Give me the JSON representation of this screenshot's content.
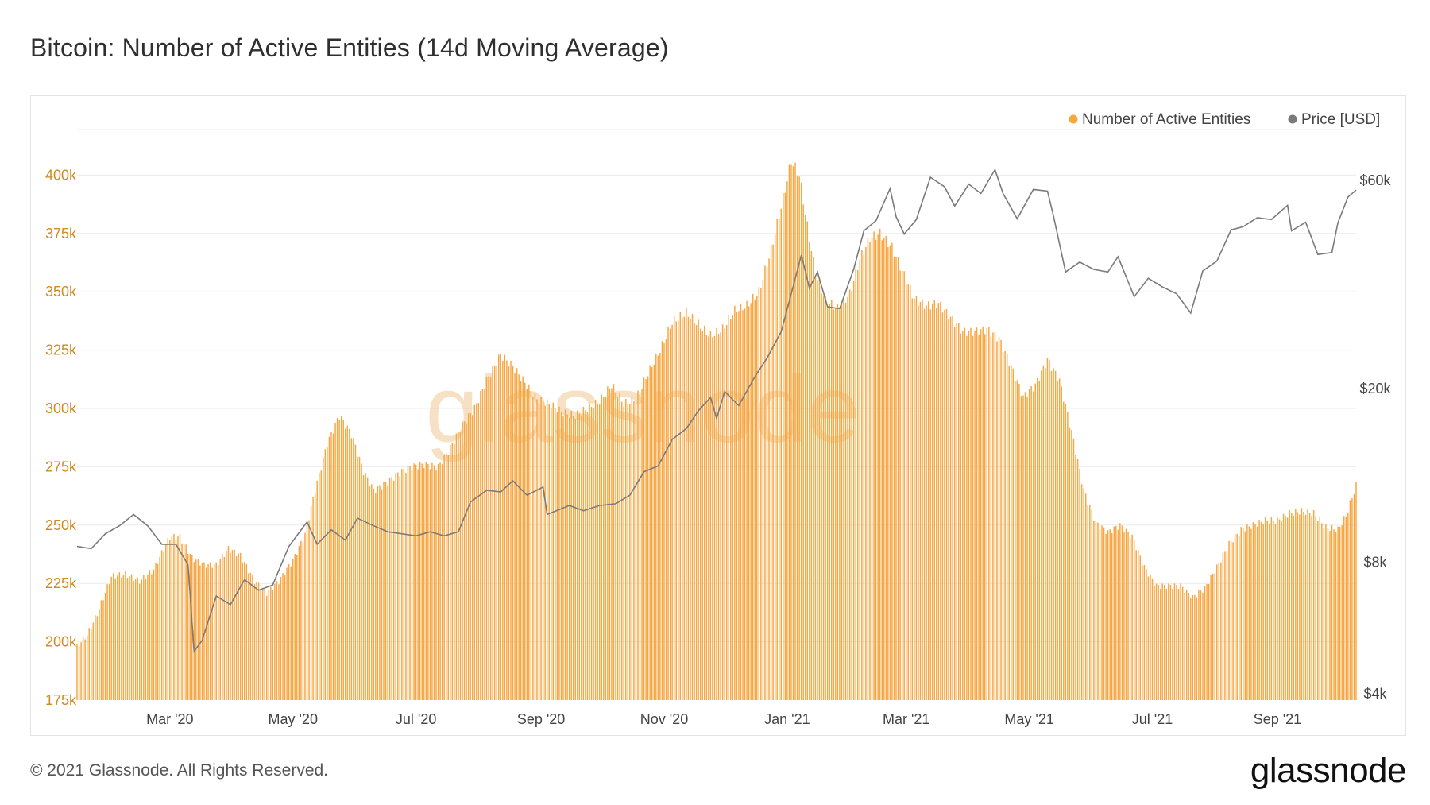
{
  "title": "Bitcoin: Number of Active Entities (14d Moving Average)",
  "footer": {
    "copyright": "© 2021 Glassnode. All Rights Reserved.",
    "logo": "glassnode"
  },
  "watermark": "glassnode",
  "colors": {
    "entities": "#f7a640",
    "price": "#7a7a7a",
    "grid": "#ececec",
    "left_axis_text": "#d08a1e"
  },
  "chart_data": {
    "type": "bar",
    "title": "Bitcoin: Number of Active Entities (14d Moving Average)",
    "x_range": [
      "2020-01-15",
      "2021-10-10"
    ],
    "x_ticks": [
      "Mar '20",
      "May '20",
      "Jul '20",
      "Sep '20",
      "Nov '20",
      "Jan '21",
      "Mar '21",
      "May '21",
      "Jul '21",
      "Sep '21"
    ],
    "x_tick_dates": [
      "2020-03-01",
      "2020-05-01",
      "2020-07-01",
      "2020-09-01",
      "2020-11-01",
      "2021-01-01",
      "2021-03-01",
      "2021-05-01",
      "2021-07-01",
      "2021-09-01"
    ],
    "y_left": {
      "ticks": [
        "175k",
        "200k",
        "225k",
        "250k",
        "275k",
        "300k",
        "325k",
        "350k",
        "375k",
        "400k"
      ],
      "range": [
        175000,
        410000
      ]
    },
    "y_right": {
      "ticks": [
        "$4k",
        "$8k",
        "$20k",
        "$60k"
      ],
      "tick_values": [
        4000,
        8000,
        20000,
        60000
      ],
      "scale": "log"
    },
    "legend": {
      "position": "top-right",
      "items": [
        "Number of Active Entities",
        "Price [USD]"
      ]
    },
    "grid": true,
    "series": [
      {
        "name": "Number of Active Entities",
        "kind": "bar",
        "axis": "left",
        "points": [
          [
            "2020-01-15",
            198000
          ],
          [
            "2020-01-20",
            203000
          ],
          [
            "2020-01-25",
            212000
          ],
          [
            "2020-02-01",
            228000
          ],
          [
            "2020-02-08",
            229000
          ],
          [
            "2020-02-15",
            226000
          ],
          [
            "2020-02-22",
            231000
          ],
          [
            "2020-03-01",
            245000
          ],
          [
            "2020-03-06",
            245000
          ],
          [
            "2020-03-12",
            236000
          ],
          [
            "2020-03-18",
            233000
          ],
          [
            "2020-03-24",
            233000
          ],
          [
            "2020-03-30",
            240000
          ],
          [
            "2020-04-05",
            237000
          ],
          [
            "2020-04-12",
            226000
          ],
          [
            "2020-04-18",
            221000
          ],
          [
            "2020-04-24",
            226000
          ],
          [
            "2020-05-01",
            235000
          ],
          [
            "2020-05-07",
            246000
          ],
          [
            "2020-05-12",
            265000
          ],
          [
            "2020-05-18",
            285000
          ],
          [
            "2020-05-24",
            297000
          ],
          [
            "2020-05-30",
            289000
          ],
          [
            "2020-06-05",
            273000
          ],
          [
            "2020-06-10",
            265000
          ],
          [
            "2020-06-16",
            268000
          ],
          [
            "2020-06-22",
            272000
          ],
          [
            "2020-06-28",
            275000
          ],
          [
            "2020-07-05",
            276000
          ],
          [
            "2020-07-12",
            275000
          ],
          [
            "2020-07-18",
            283000
          ],
          [
            "2020-07-24",
            293000
          ],
          [
            "2020-07-30",
            300000
          ],
          [
            "2020-08-05",
            312000
          ],
          [
            "2020-08-12",
            323000
          ],
          [
            "2020-08-18",
            318000
          ],
          [
            "2020-08-24",
            311000
          ],
          [
            "2020-08-30",
            304000
          ],
          [
            "2020-09-05",
            302000
          ],
          [
            "2020-09-12",
            298000
          ],
          [
            "2020-09-18",
            297000
          ],
          [
            "2020-09-24",
            300000
          ],
          [
            "2020-09-30",
            303000
          ],
          [
            "2020-10-06",
            310000
          ],
          [
            "2020-10-12",
            302000
          ],
          [
            "2020-10-18",
            304000
          ],
          [
            "2020-10-24",
            315000
          ],
          [
            "2020-10-30",
            325000
          ],
          [
            "2020-11-05",
            337000
          ],
          [
            "2020-11-12",
            341000
          ],
          [
            "2020-11-18",
            336000
          ],
          [
            "2020-11-24",
            331000
          ],
          [
            "2020-11-30",
            334000
          ],
          [
            "2020-12-06",
            342000
          ],
          [
            "2020-12-12",
            344000
          ],
          [
            "2020-12-18",
            350000
          ],
          [
            "2020-12-24",
            368000
          ],
          [
            "2020-12-30",
            390000
          ],
          [
            "2021-01-03",
            406000
          ],
          [
            "2021-01-07",
            400000
          ],
          [
            "2021-01-11",
            378000
          ],
          [
            "2021-01-15",
            358000
          ],
          [
            "2021-01-20",
            346000
          ],
          [
            "2021-01-26",
            343000
          ],
          [
            "2021-02-01",
            349000
          ],
          [
            "2021-02-06",
            364000
          ],
          [
            "2021-02-11",
            373000
          ],
          [
            "2021-02-16",
            375000
          ],
          [
            "2021-02-22",
            369000
          ],
          [
            "2021-02-28",
            357000
          ],
          [
            "2021-03-05",
            347000
          ],
          [
            "2021-03-11",
            344000
          ],
          [
            "2021-03-17",
            345000
          ],
          [
            "2021-03-23",
            339000
          ],
          [
            "2021-03-29",
            333000
          ],
          [
            "2021-04-04",
            333000
          ],
          [
            "2021-04-10",
            334000
          ],
          [
            "2021-04-16",
            330000
          ],
          [
            "2021-04-22",
            318000
          ],
          [
            "2021-04-28",
            305000
          ],
          [
            "2021-05-04",
            310000
          ],
          [
            "2021-05-10",
            321000
          ],
          [
            "2021-05-16",
            312000
          ],
          [
            "2021-05-22",
            290000
          ],
          [
            "2021-05-28",
            265000
          ],
          [
            "2021-06-03",
            251000
          ],
          [
            "2021-06-09",
            247000
          ],
          [
            "2021-06-15",
            250000
          ],
          [
            "2021-06-21",
            245000
          ],
          [
            "2021-06-27",
            232000
          ],
          [
            "2021-07-03",
            224000
          ],
          [
            "2021-07-09",
            224000
          ],
          [
            "2021-07-15",
            224000
          ],
          [
            "2021-07-21",
            219000
          ],
          [
            "2021-07-27",
            223000
          ],
          [
            "2021-08-02",
            232000
          ],
          [
            "2021-08-08",
            242000
          ],
          [
            "2021-08-14",
            248000
          ],
          [
            "2021-08-20",
            250000
          ],
          [
            "2021-08-26",
            252000
          ],
          [
            "2021-09-01",
            252000
          ],
          [
            "2021-09-07",
            255000
          ],
          [
            "2021-09-13",
            256000
          ],
          [
            "2021-09-19",
            255000
          ],
          [
            "2021-09-25",
            249000
          ],
          [
            "2021-10-01",
            248000
          ],
          [
            "2021-10-05",
            254000
          ],
          [
            "2021-10-10",
            267000
          ]
        ]
      },
      {
        "name": "Price [USD]",
        "kind": "line",
        "axis": "right",
        "points": [
          [
            "2020-01-15",
            8700
          ],
          [
            "2020-01-22",
            8600
          ],
          [
            "2020-01-29",
            9300
          ],
          [
            "2020-02-05",
            9700
          ],
          [
            "2020-02-12",
            10300
          ],
          [
            "2020-02-19",
            9700
          ],
          [
            "2020-02-26",
            8800
          ],
          [
            "2020-03-04",
            8800
          ],
          [
            "2020-03-10",
            7900
          ],
          [
            "2020-03-13",
            5000
          ],
          [
            "2020-03-17",
            5300
          ],
          [
            "2020-03-24",
            6700
          ],
          [
            "2020-03-31",
            6400
          ],
          [
            "2020-04-07",
            7300
          ],
          [
            "2020-04-14",
            6900
          ],
          [
            "2020-04-21",
            7100
          ],
          [
            "2020-04-29",
            8700
          ],
          [
            "2020-05-08",
            9900
          ],
          [
            "2020-05-13",
            8800
          ],
          [
            "2020-05-20",
            9500
          ],
          [
            "2020-05-27",
            9000
          ],
          [
            "2020-06-02",
            10100
          ],
          [
            "2020-06-10",
            9700
          ],
          [
            "2020-06-17",
            9400
          ],
          [
            "2020-06-24",
            9300
          ],
          [
            "2020-07-01",
            9200
          ],
          [
            "2020-07-08",
            9400
          ],
          [
            "2020-07-15",
            9200
          ],
          [
            "2020-07-22",
            9400
          ],
          [
            "2020-07-28",
            11000
          ],
          [
            "2020-08-05",
            11700
          ],
          [
            "2020-08-12",
            11600
          ],
          [
            "2020-08-18",
            12300
          ],
          [
            "2020-08-25",
            11400
          ],
          [
            "2020-09-02",
            11900
          ],
          [
            "2020-09-04",
            10300
          ],
          [
            "2020-09-15",
            10800
          ],
          [
            "2020-09-22",
            10500
          ],
          [
            "2020-09-30",
            10800
          ],
          [
            "2020-10-08",
            10900
          ],
          [
            "2020-10-15",
            11400
          ],
          [
            "2020-10-22",
            12900
          ],
          [
            "2020-10-29",
            13300
          ],
          [
            "2020-11-05",
            15300
          ],
          [
            "2020-11-12",
            16200
          ],
          [
            "2020-11-18",
            17800
          ],
          [
            "2020-11-24",
            19100
          ],
          [
            "2020-11-27",
            17100
          ],
          [
            "2020-12-01",
            19700
          ],
          [
            "2020-12-08",
            18300
          ],
          [
            "2020-12-16",
            21300
          ],
          [
            "2020-12-22",
            23500
          ],
          [
            "2020-12-29",
            27000
          ],
          [
            "2021-01-03",
            33000
          ],
          [
            "2021-01-08",
            40500
          ],
          [
            "2021-01-12",
            34000
          ],
          [
            "2021-01-16",
            37000
          ],
          [
            "2021-01-21",
            30800
          ],
          [
            "2021-01-27",
            30500
          ],
          [
            "2021-02-03",
            37600
          ],
          [
            "2021-02-08",
            46000
          ],
          [
            "2021-02-14",
            48500
          ],
          [
            "2021-02-21",
            57500
          ],
          [
            "2021-02-24",
            49500
          ],
          [
            "2021-02-28",
            45200
          ],
          [
            "2021-03-06",
            48800
          ],
          [
            "2021-03-13",
            61000
          ],
          [
            "2021-03-20",
            58000
          ],
          [
            "2021-03-25",
            52400
          ],
          [
            "2021-04-01",
            58800
          ],
          [
            "2021-04-07",
            56000
          ],
          [
            "2021-04-14",
            63500
          ],
          [
            "2021-04-18",
            56000
          ],
          [
            "2021-04-25",
            49000
          ],
          [
            "2021-05-03",
            57200
          ],
          [
            "2021-05-10",
            56700
          ],
          [
            "2021-05-13",
            49700
          ],
          [
            "2021-05-19",
            37000
          ],
          [
            "2021-05-26",
            39000
          ],
          [
            "2021-06-02",
            37500
          ],
          [
            "2021-06-09",
            37000
          ],
          [
            "2021-06-14",
            40100
          ],
          [
            "2021-06-22",
            32500
          ],
          [
            "2021-06-29",
            35800
          ],
          [
            "2021-07-06",
            34200
          ],
          [
            "2021-07-13",
            33000
          ],
          [
            "2021-07-20",
            29800
          ],
          [
            "2021-07-26",
            37200
          ],
          [
            "2021-08-02",
            39200
          ],
          [
            "2021-08-09",
            46200
          ],
          [
            "2021-08-15",
            47000
          ],
          [
            "2021-08-22",
            49300
          ],
          [
            "2021-08-29",
            48800
          ],
          [
            "2021-09-06",
            52600
          ],
          [
            "2021-09-08",
            46000
          ],
          [
            "2021-09-15",
            48100
          ],
          [
            "2021-09-21",
            40600
          ],
          [
            "2021-09-28",
            41000
          ],
          [
            "2021-10-01",
            48000
          ],
          [
            "2021-10-06",
            55000
          ],
          [
            "2021-10-10",
            57000
          ]
        ]
      }
    ]
  }
}
